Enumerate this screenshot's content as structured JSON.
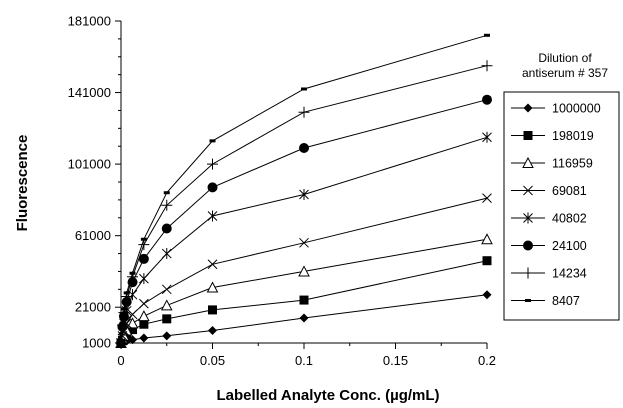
{
  "chart_data": {
    "type": "line",
    "title": "",
    "xlabel": "Labelled Analyte Conc.  (µg/mL)",
    "ylabel": "Fluorescence",
    "xlim": [
      0,
      0.2
    ],
    "ylim": [
      1000,
      181000
    ],
    "xticks": [
      0,
      0.05,
      0.1,
      0.15,
      0.2
    ],
    "xtick_labels": [
      "0",
      "0.05",
      "0.1",
      "0.15",
      "0.2"
    ],
    "yticks": [
      1000,
      21000,
      61000,
      101000,
      141000,
      181000
    ],
    "ytick_labels": [
      "1000",
      "21000",
      "61000",
      "101000",
      "141000",
      "181000"
    ],
    "legend_title": [
      "Dilution of",
      "antiserum # 357"
    ],
    "legend_position": "right",
    "grid": false,
    "x": [
      0,
      0.0008,
      0.0016,
      0.0031,
      0.0063,
      0.0125,
      0.025,
      0.05,
      0.1,
      0.2
    ],
    "series": [
      {
        "name": "1000000",
        "marker": "diamond",
        "values": [
          1000,
          1200,
          1500,
          2100,
          2800,
          3800,
          5000,
          8000,
          15000,
          28000
        ]
      },
      {
        "name": "198019",
        "marker": "square",
        "values": [
          1000,
          2500,
          3500,
          5500,
          8500,
          11500,
          14500,
          19500,
          25000,
          47000
        ]
      },
      {
        "name": "116959",
        "marker": "triangle",
        "values": [
          1000,
          3500,
          5000,
          8000,
          12000,
          16000,
          22000,
          32000,
          41000,
          59000
        ]
      },
      {
        "name": "69081",
        "marker": "x",
        "values": [
          1000,
          5000,
          8000,
          12000,
          17000,
          23000,
          31000,
          45000,
          57000,
          82000
        ]
      },
      {
        "name": "40802",
        "marker": "star",
        "values": [
          1000,
          8000,
          12000,
          19000,
          28000,
          37000,
          51000,
          72000,
          84000,
          116000
        ]
      },
      {
        "name": "24100",
        "marker": "circle",
        "values": [
          1000,
          10000,
          16000,
          24000,
          35000,
          48000,
          65000,
          88000,
          110000,
          137000
        ]
      },
      {
        "name": "14234",
        "marker": "plus",
        "values": [
          1000,
          11000,
          18000,
          27000,
          38000,
          56000,
          78000,
          101000,
          130000,
          156000
        ]
      },
      {
        "name": "8407",
        "marker": "dash",
        "values": [
          1000,
          12000,
          20000,
          29000,
          40000,
          59000,
          85000,
          114000,
          143000,
          173000
        ]
      }
    ]
  }
}
